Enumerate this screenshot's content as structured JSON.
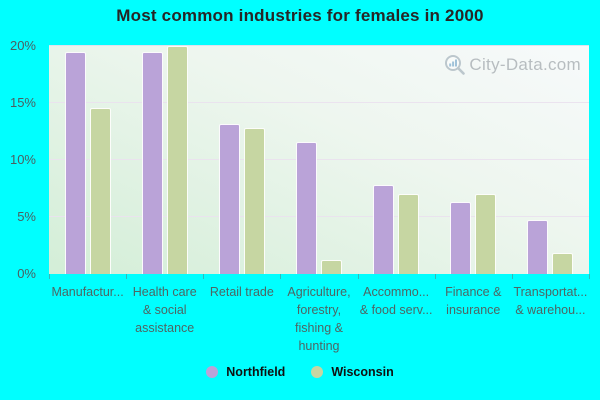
{
  "title": "Most common industries for females in 2000",
  "watermark": "City-Data.com",
  "colors": {
    "background": "#00ffff",
    "northfield": "#baa3d8",
    "wisconsin": "#c6d6a2",
    "plot_top": "#f7fafb",
    "plot_bottom": "#d3eed7",
    "axis_text": "#4d6664",
    "title_text": "#262626",
    "watermark_text": "#adb3b7"
  },
  "chart_data": {
    "type": "bar",
    "title": "Most common industries for females in 2000",
    "categories": [
      "Manufactur...",
      "Health care\n& social\nassistance",
      "Retail trade",
      "Agriculture,\nforestry,\nfishing &\nhunting",
      "Accommo...\n& food serv...",
      "Finance &\ninsurance",
      "Transportat...\n& warehou..."
    ],
    "series": [
      {
        "name": "Northfield",
        "color": "#baa3d8",
        "values": [
          19.5,
          19.5,
          13.2,
          11.6,
          7.8,
          6.3,
          4.7
        ]
      },
      {
        "name": "Wisconsin",
        "color": "#c6d6a2",
        "values": [
          14.6,
          20.0,
          12.8,
          1.2,
          7.0,
          7.0,
          1.8
        ]
      }
    ],
    "xlabel": "",
    "ylabel": "",
    "unit": "%",
    "ylim": [
      0,
      20
    ],
    "yticks": [
      0,
      5,
      10,
      15,
      20
    ],
    "ytick_labels": [
      "0%",
      "5%",
      "10%",
      "15%",
      "20%"
    ],
    "grid": true,
    "legend_position": "bottom"
  }
}
